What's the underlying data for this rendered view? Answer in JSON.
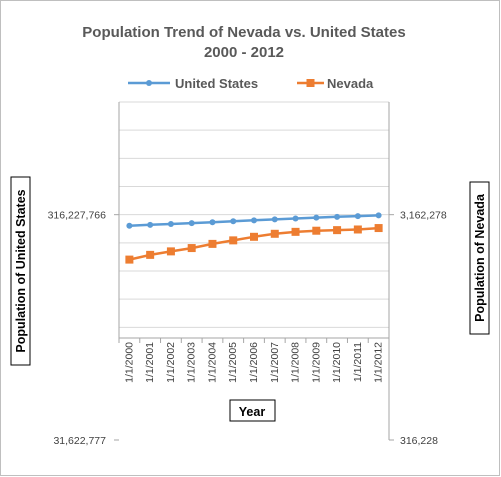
{
  "chart_data": {
    "type": "line",
    "title_line1": "Population Trend of Nevada vs. United States",
    "title_line2": "2000 - 2012",
    "xlabel": "Year",
    "ylabel_left": "Population of United States",
    "ylabel_right": "Population of Nevada",
    "log_scale": true,
    "grid": true,
    "legend_position": "top",
    "categories": [
      "1/1/2000",
      "1/1/2001",
      "1/1/2002",
      "1/1/2003",
      "1/1/2004",
      "1/1/2005",
      "1/1/2006",
      "1/1/2007",
      "1/1/2008",
      "1/1/2009",
      "1/1/2010",
      "1/1/2011",
      "1/1/2012"
    ],
    "left_axis": {
      "ticks": [
        31622777,
        316227766
      ],
      "tick_labels": [
        "31,622,777",
        "316,227,766"
      ],
      "ylim": [
        31622777,
        1000000000
      ]
    },
    "right_axis": {
      "ticks": [
        316228,
        3162278
      ],
      "tick_labels": [
        "316,228",
        "3,162,278"
      ],
      "ylim": [
        316228,
        10000000
      ]
    },
    "series": [
      {
        "name": "United States",
        "axis": "left",
        "color": "#5b9bd5",
        "marker": "circle",
        "values": [
          282200000,
          285000000,
          287600000,
          290100000,
          292800000,
          295500000,
          298400000,
          301200000,
          304100000,
          306800000,
          309300000,
          311600000,
          313900000
        ]
      },
      {
        "name": "Nevada",
        "axis": "right",
        "color": "#ed7d31",
        "marker": "square",
        "values": [
          1998000,
          2097000,
          2173000,
          2248000,
          2346000,
          2432000,
          2522000,
          2601000,
          2653000,
          2684000,
          2700000,
          2718000,
          2758000
        ]
      }
    ]
  }
}
